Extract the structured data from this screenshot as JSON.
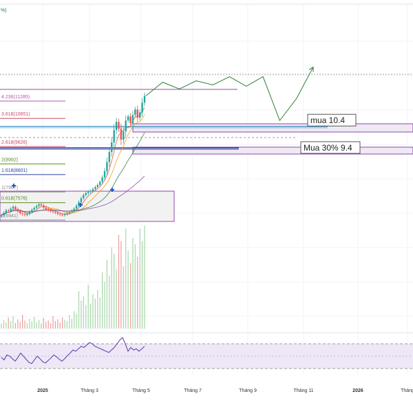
{
  "chart_data": {
    "type": "candlestick",
    "top_corner_label": "%)",
    "x_axis": {
      "ticks": [
        "2025",
        "Tháng 3",
        "Tháng 5",
        "Tháng 7",
        "Tháng 9",
        "Tháng 11",
        "2026",
        "Tháng"
      ]
    },
    "fib_levels": [
      {
        "label": "4.236(11285)",
        "value": 11285,
        "color": "#b05aa8"
      },
      {
        "label": "3.618(10651)",
        "value": 10651,
        "color": "#c8486a"
      },
      {
        "label": "2.618(9626)",
        "value": 9626,
        "color": "#c8486a"
      },
      {
        "label": "2(8992)",
        "value": 8992,
        "color": "#5a8a1e"
      },
      {
        "label": "1.618(8601)",
        "value": 8601,
        "color": "#2e3f9e"
      },
      {
        "label": "1(7967)",
        "value": 7967,
        "color": "#888888"
      },
      {
        "label": "0.618(7576)",
        "value": 7576,
        "color": "#5a8a1e"
      },
      {
        "label": "0(6941)",
        "value": 6941,
        "color": "#888888"
      }
    ],
    "annotations": [
      {
        "text": "mua 10.4",
        "value": 10.4
      },
      {
        "text": "Mua 30% 9.4",
        "value": 9.4
      }
    ],
    "price_series": [
      6941,
      7030,
      7120,
      7090,
      7180,
      7250,
      7160,
      7080,
      7010,
      6980,
      6950,
      6990,
      7060,
      7140,
      7210,
      7280,
      7340,
      7300,
      7220,
      7160,
      7120,
      7090,
      7060,
      7030,
      6990,
      6960,
      6941,
      6975,
      7020,
      7060,
      7110,
      7180,
      7290,
      7420,
      7560,
      7680,
      7750,
      7800,
      7830,
      7900,
      7970,
      8050,
      8160,
      8320,
      8550,
      8880,
      9250,
      9600,
      10050,
      10350,
      10100,
      9700,
      10000,
      10400,
      10550,
      10300,
      10600,
      10800,
      10500,
      10700,
      11050,
      11300
    ],
    "projection": [
      11300,
      11800,
      11550,
      11850,
      11700,
      12000,
      11650,
      12000,
      10400,
      11200,
      12350
    ],
    "volume": [
      8,
      14,
      10,
      18,
      12,
      20,
      9,
      15,
      11,
      22,
      13,
      9,
      16,
      12,
      19,
      10,
      14,
      8,
      17,
      11,
      13,
      9,
      20,
      12,
      15,
      10,
      18,
      14,
      12,
      22,
      16,
      28,
      24,
      60,
      45,
      52,
      38,
      70,
      40,
      55,
      48,
      62,
      50,
      90,
      75,
      110,
      85,
      130,
      120,
      95,
      150,
      140,
      100,
      160,
      125,
      105,
      145,
      135,
      115,
      160,
      140,
      165
    ],
    "rsi_band": [
      30,
      70
    ],
    "rsi": [
      48,
      44,
      52,
      50,
      46,
      42,
      48,
      55,
      50,
      45,
      40,
      38,
      44,
      50,
      46,
      41,
      39,
      43,
      47,
      52,
      49,
      45,
      42,
      46,
      51,
      55,
      60,
      58,
      62,
      66,
      64,
      68,
      72,
      70,
      66,
      64,
      62,
      60,
      58,
      56,
      60,
      64,
      70,
      76,
      80,
      70,
      58,
      64,
      60,
      62,
      58,
      62,
      66
    ]
  }
}
